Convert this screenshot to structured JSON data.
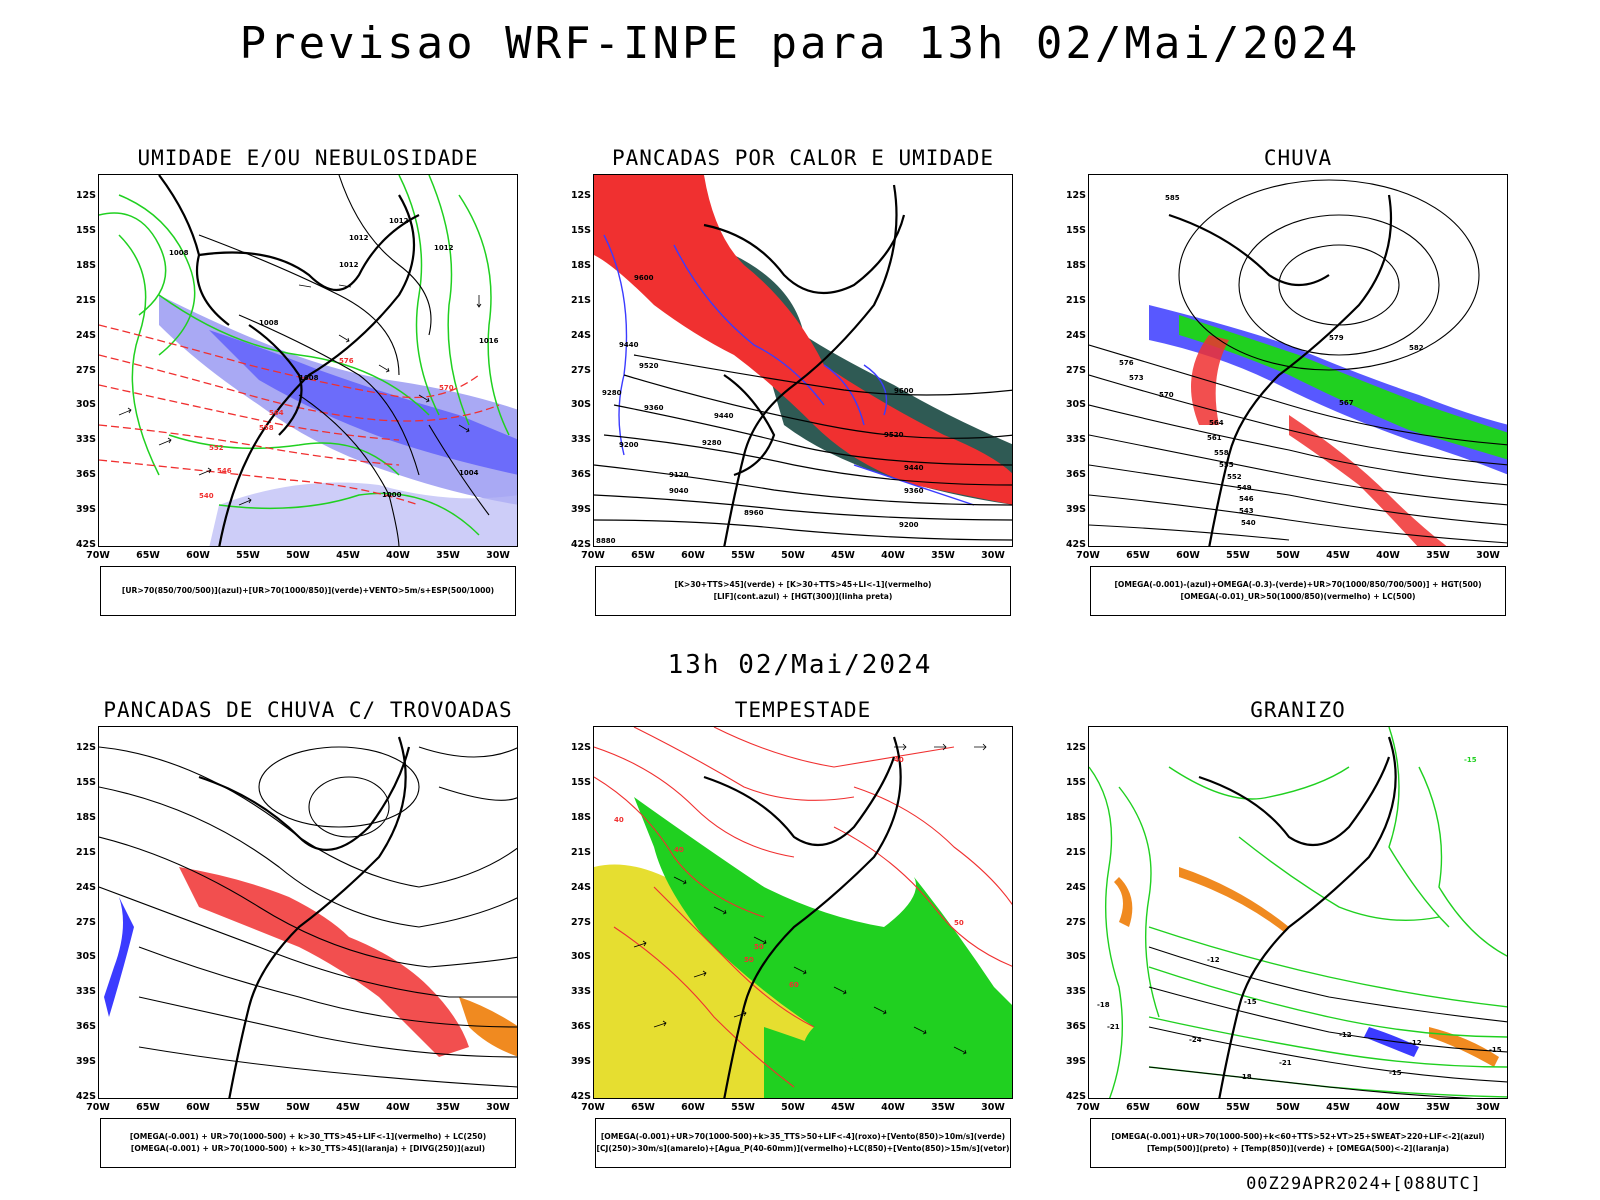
{
  "main_title": "Previsao WRF-INPE  para 13h 02/Mai/2024",
  "mid_title": "13h 02/Mai/2024",
  "footer": "00Z29APR2024+[088UTC]",
  "lat_labels": [
    "12S",
    "15S",
    "18S",
    "21S",
    "24S",
    "27S",
    "30S",
    "33S",
    "36S",
    "39S",
    "42S"
  ],
  "lon_labels": [
    "70W",
    "65W",
    "60W",
    "55W",
    "50W",
    "45W",
    "40W",
    "35W",
    "30W"
  ],
  "colors": {
    "blue": "#3b3bff",
    "light_blue": "#8c8cf0",
    "green": "#20d020",
    "red": "#f03030",
    "dark_teal": "#2f5a54",
    "yellow": "#e6de30",
    "orange": "#f08a20",
    "black": "#000000"
  },
  "panels": [
    {
      "title": "UMIDADE E/OU NEBULOSIDADE",
      "legend": [
        "[UR>70(850/700/500)](azul)+[UR>70(1000/850)](verde)+VENTO>5m/s+ESP(500/1000)"
      ],
      "labels": [
        "1012",
        "1012",
        "1008",
        "1012",
        "1008",
        "1008",
        "1004",
        "1000",
        "576",
        "570",
        "564",
        "558",
        "552",
        "546",
        "540",
        "1016",
        "1012"
      ]
    },
    {
      "title": "PANCADAS POR CALOR E UMIDADE",
      "legend": [
        "[K>30+TTS>45](verde) + [K>30+TTS>45+LI<-1](vermelho)",
        "[LIF](cont.azul) + [HGT(300)](linha preta)"
      ],
      "labels": [
        "9600",
        "9440",
        "9520",
        "9280",
        "9360",
        "9200",
        "9120",
        "9040",
        "8960",
        "9600",
        "9440",
        "9280",
        "9520",
        "9440",
        "9360",
        "9200",
        "8880"
      ]
    },
    {
      "title": "CHUVA",
      "legend": [
        "[OMEGA(-0.001)-(azul)+OMEGA(-0.3)-(verde)+UR>70(1000/850/700/500)] + HGT(500)",
        "[OMEGA(-0.01)_UR>50(1000/850)(vermelho) + LC(500)"
      ],
      "labels": [
        "585",
        "582",
        "579",
        "576",
        "573",
        "570",
        "567",
        "564",
        "561",
        "558",
        "555",
        "552",
        "549",
        "546",
        "543",
        "540"
      ]
    },
    {
      "title": "PANCADAS DE CHUVA C/ TROVOADAS",
      "legend": [
        "[OMEGA(-0.001) + UR>70(1000-500) + k>30_TTS>45+LIF<-1](vermelho) + LC(250)",
        "[OMEGA(-0.001) + UR>70(1000-500) + k>30_TTS>45](laranja) + [DIVG(250)](azul)"
      ],
      "labels": []
    },
    {
      "title": "TEMPESTADE",
      "legend": [
        "[OMEGA(-0.001)+UR>70(1000-500)+k>35_TTS>50+LIF<-4](roxo)+[Vento(850)>10m/s](verde)",
        "[CJ(250)>30m/s](amarelo)+[Agua_P(40-60mm)](vermelho)+LC(850)+[Vento(850)>15m/s](vetor)"
      ],
      "labels": [
        "40",
        "50",
        "40",
        "50",
        "60",
        "40",
        "50"
      ]
    },
    {
      "title": "GRANIZO",
      "legend": [
        "[OMEGA(-0.001)+UR>70(1000-500)+k<60+TTS>52+VT>25+SWEAT>220+LIF<-2](azul)",
        "[Temp(500)](preto) + [Temp(850)](verde) + [OMEGA(500)<-2](laranja)"
      ],
      "labels": [
        "-15",
        "-12",
        "-12",
        "-15",
        "-18",
        "-21",
        "-24",
        "-21",
        "-18",
        "-15",
        "-15",
        "-12"
      ]
    }
  ]
}
